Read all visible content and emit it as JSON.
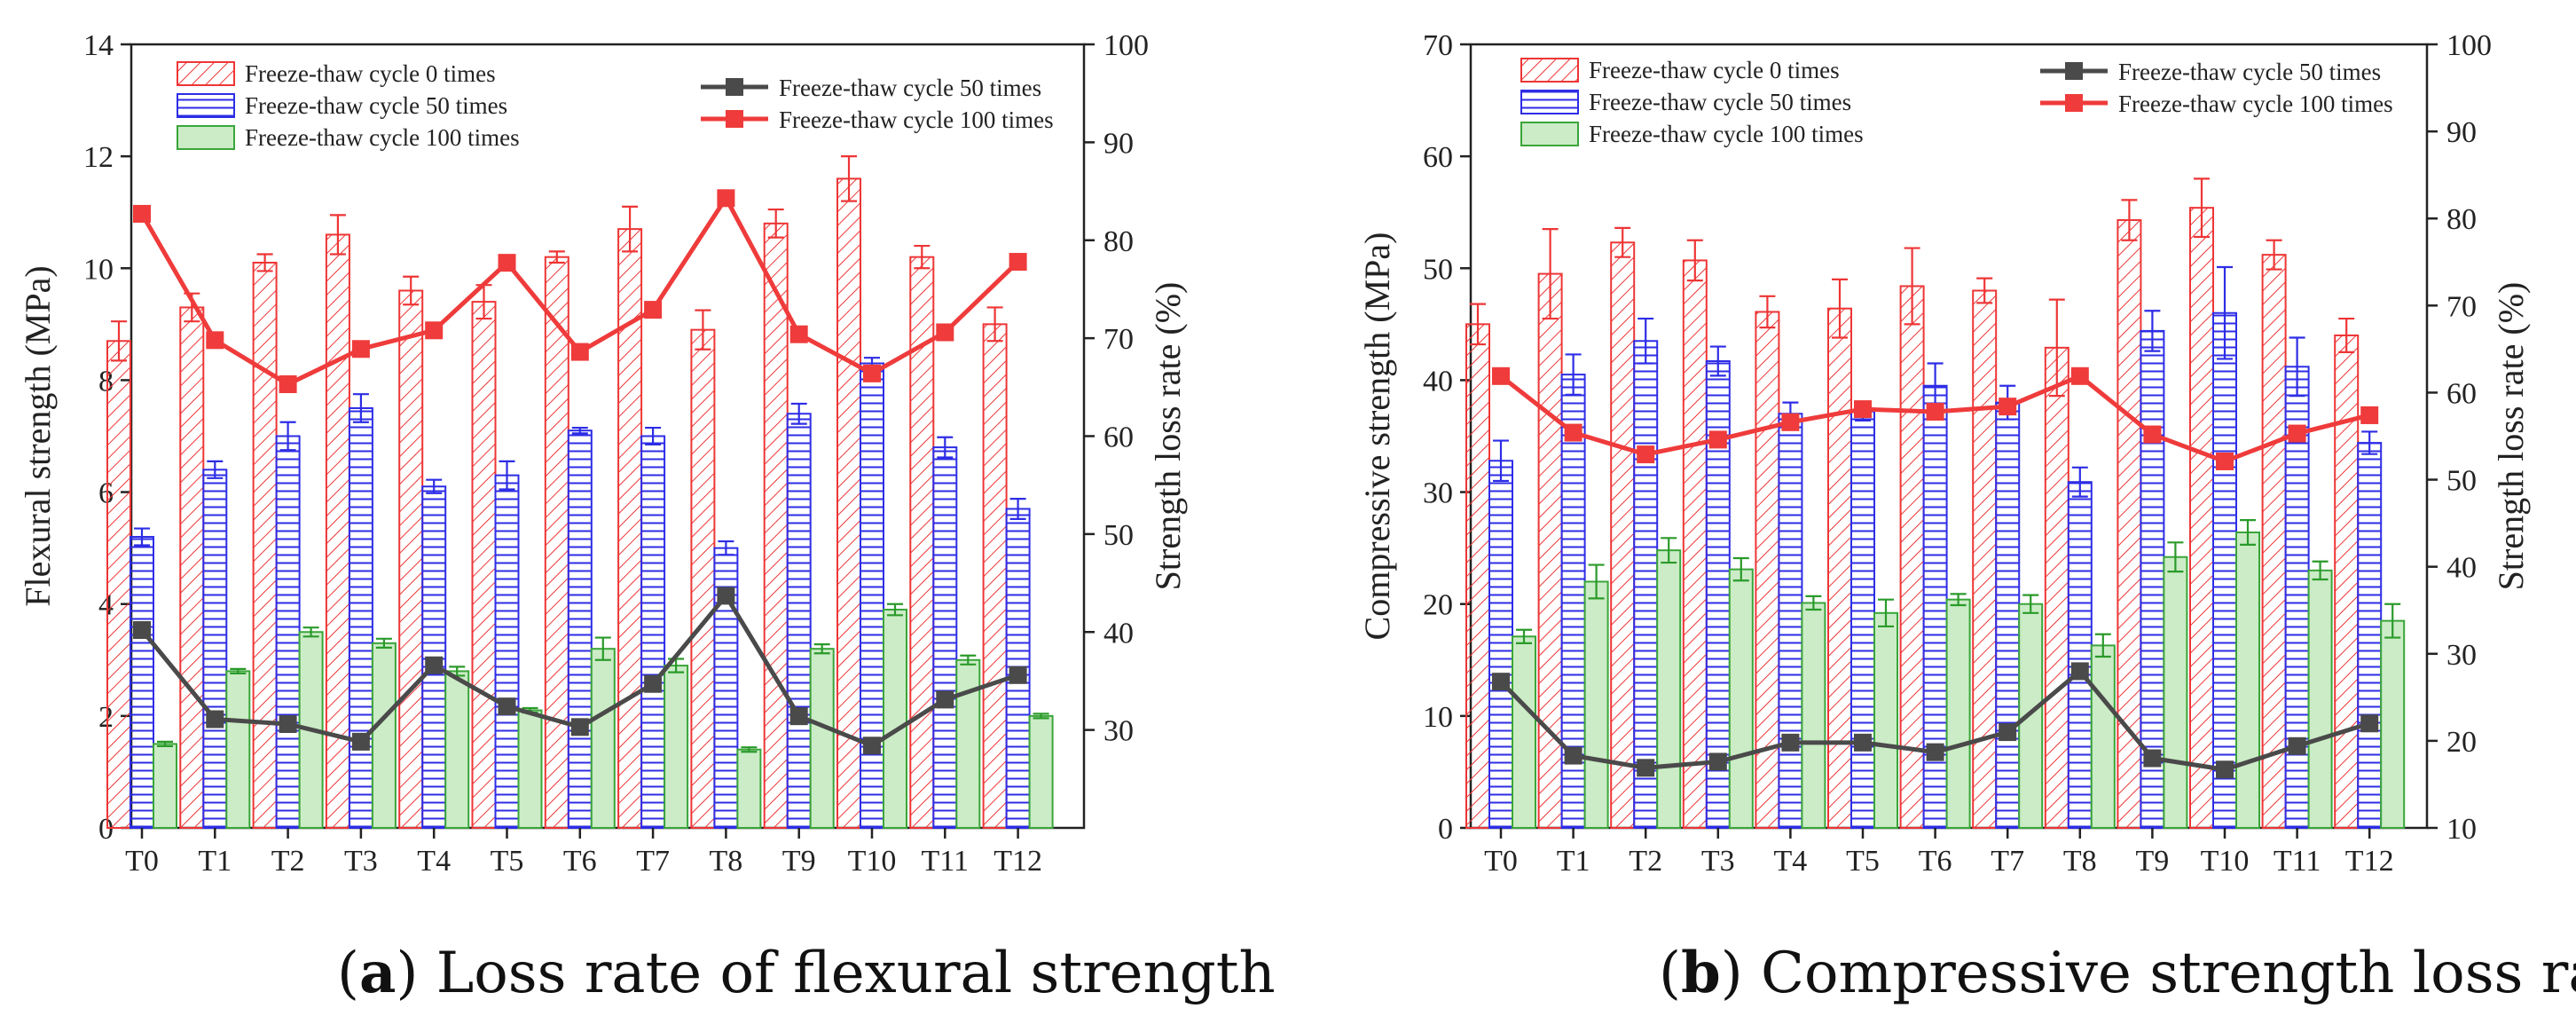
{
  "chart_data": [
    {
      "type": "bar",
      "panel_id": "a",
      "caption_letter": "a",
      "caption_text": " Loss rate of flexural strength",
      "categories": [
        "T0",
        "T1",
        "T2",
        "T3",
        "T4",
        "T5",
        "T6",
        "T7",
        "T8",
        "T9",
        "T10",
        "T11",
        "T12"
      ],
      "ylabel": "Flexural strength (MPa)",
      "y2label": "Strength loss rate (%)",
      "ylim": [
        0,
        14
      ],
      "yticks": [
        0,
        2,
        4,
        6,
        8,
        10,
        12,
        14
      ],
      "y2lim": [
        20,
        100
      ],
      "y2ticks": [
        30,
        40,
        50,
        60,
        70,
        80,
        90,
        100
      ],
      "bar_series": [
        {
          "name": "Freeze-thaw cycle 0 times",
          "style": "red-hatch",
          "values": [
            8.7,
            9.3,
            10.1,
            10.6,
            9.6,
            9.4,
            10.2,
            10.7,
            8.9,
            10.8,
            11.6,
            10.2,
            9.0
          ],
          "errors": [
            0.35,
            0.25,
            0.15,
            0.35,
            0.25,
            0.3,
            0.1,
            0.4,
            0.35,
            0.25,
            0.4,
            0.2,
            0.3
          ]
        },
        {
          "name": "Freeze-thaw cycle 50 times",
          "style": "blue-lines",
          "values": [
            5.2,
            6.4,
            7.0,
            7.5,
            6.1,
            6.3,
            7.1,
            7.0,
            5.0,
            7.4,
            8.3,
            6.8,
            5.7
          ],
          "errors": [
            0.15,
            0.15,
            0.25,
            0.25,
            0.12,
            0.25,
            0.05,
            0.15,
            0.12,
            0.18,
            0.1,
            0.18,
            0.18
          ]
        },
        {
          "name": "Freeze-thaw cycle 100 times",
          "style": "green-fill",
          "values": [
            1.5,
            2.8,
            3.5,
            3.3,
            2.8,
            2.1,
            3.2,
            2.9,
            1.4,
            3.2,
            3.9,
            3.0,
            2.0
          ],
          "errors": [
            0.04,
            0.04,
            0.08,
            0.08,
            0.08,
            0.04,
            0.2,
            0.12,
            0.04,
            0.08,
            0.1,
            0.08,
            0.04
          ]
        }
      ],
      "line_series": [
        {
          "name": "Freeze-thaw cycle 50 times",
          "color": "#4a4a4a",
          "values": [
            40.2,
            31.1,
            30.6,
            28.8,
            36.6,
            32.4,
            30.3,
            34.7,
            43.7,
            31.4,
            28.4,
            33.1,
            35.6
          ]
        },
        {
          "name": "Freeze-thaw cycle 100 times",
          "color": "#ef3b3b",
          "values": [
            82.7,
            69.8,
            65.3,
            68.9,
            70.8,
            77.7,
            68.6,
            72.9,
            84.3,
            70.4,
            66.4,
            70.6,
            77.8
          ]
        }
      ]
    },
    {
      "type": "bar",
      "panel_id": "b",
      "caption_letter": "b",
      "caption_text": " Compressive strength loss rate",
      "categories": [
        "T0",
        "T1",
        "T2",
        "T3",
        "T4",
        "T5",
        "T6",
        "T7",
        "T8",
        "T9",
        "T10",
        "T11",
        "T12"
      ],
      "ylabel": "Compressive strength (MPa)",
      "y2label": "Strength loss rate (%)",
      "ylim": [
        0,
        70
      ],
      "yticks": [
        0,
        10,
        20,
        30,
        40,
        50,
        60,
        70
      ],
      "y2lim": [
        10,
        100
      ],
      "y2ticks": [
        10,
        20,
        30,
        40,
        50,
        60,
        70,
        80,
        90,
        100
      ],
      "bar_series": [
        {
          "name": "Freeze-thaw cycle 0 times",
          "style": "red-hatch",
          "values": [
            45.0,
            49.5,
            52.3,
            50.7,
            46.1,
            46.4,
            48.4,
            48.0,
            42.9,
            54.3,
            55.4,
            51.2,
            44.0
          ],
          "errors": [
            1.8,
            4.0,
            1.3,
            1.8,
            1.4,
            2.6,
            3.4,
            1.1,
            4.3,
            1.8,
            2.6,
            1.3,
            1.5
          ]
        },
        {
          "name": "Freeze-thaw cycle 50 times",
          "style": "blue-lines",
          "values": [
            32.8,
            40.5,
            43.5,
            41.7,
            37.0,
            37.2,
            39.5,
            38.0,
            30.9,
            44.4,
            46.0,
            41.2,
            34.4
          ],
          "errors": [
            1.8,
            1.8,
            2.0,
            1.3,
            1.0,
            0.8,
            2.0,
            1.5,
            1.3,
            1.8,
            4.1,
            2.6,
            1.0
          ]
        },
        {
          "name": "Freeze-thaw cycle 100 times",
          "style": "green-fill",
          "values": [
            17.1,
            22.0,
            24.8,
            23.1,
            20.1,
            19.2,
            20.4,
            20.0,
            16.3,
            24.2,
            26.4,
            23.0,
            18.5
          ],
          "errors": [
            0.6,
            1.5,
            1.1,
            1.0,
            0.6,
            1.2,
            0.5,
            0.8,
            1.0,
            1.3,
            1.1,
            0.8,
            1.5
          ]
        }
      ],
      "line_series": [
        {
          "name": "Freeze-thaw cycle 50 times",
          "color": "#4a4a4a",
          "values": [
            26.8,
            18.3,
            16.9,
            17.6,
            19.8,
            19.8,
            18.7,
            21.0,
            28.0,
            18.0,
            16.7,
            19.4,
            22.0
          ]
        },
        {
          "name": "Freeze-thaw cycle 100 times",
          "color": "#ef3b3b",
          "values": [
            61.9,
            55.4,
            52.9,
            54.6,
            56.6,
            58.1,
            57.8,
            58.4,
            61.9,
            55.2,
            52.1,
            55.3,
            57.4
          ]
        }
      ]
    }
  ]
}
